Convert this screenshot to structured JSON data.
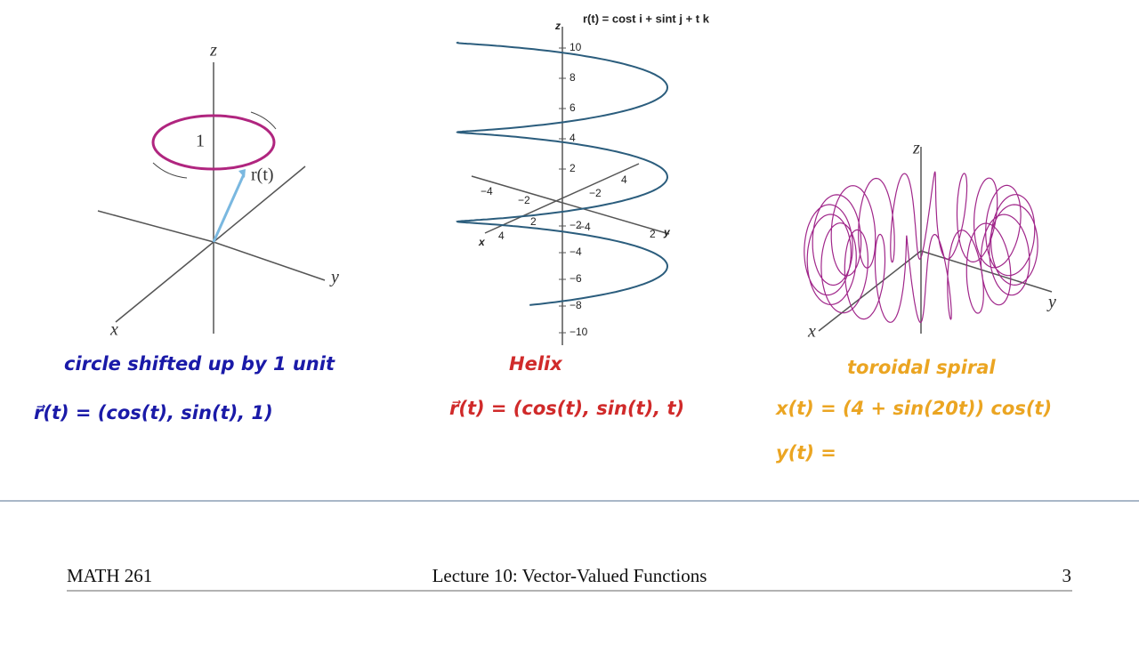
{
  "slide": {
    "figure_circle": {
      "z": "z",
      "one": "1",
      "r": "r(t)",
      "y": "y",
      "x": "x"
    },
    "figure_helix": {
      "title": "r(t) = cost i + sint j + t k",
      "z": "z",
      "x": "x",
      "y": "y",
      "z_ticks": [
        "10",
        "8",
        "6",
        "4",
        "2",
        "−2",
        "−4",
        "−6",
        "−8",
        "−10"
      ],
      "x_ticks": [
        "−4",
        "−2",
        "2",
        "4"
      ],
      "y_ticks": [
        "−4",
        "−2",
        "2",
        "4"
      ]
    },
    "figure_torus": {
      "z": "z",
      "y": "y",
      "x": "x"
    },
    "notes": {
      "circle_caption": "circle shifted up by 1 unit",
      "circle_formula": "r⃗(t) = (cos(t), sin(t), 1)",
      "helix_caption": "Helix",
      "helix_formula": "r⃗(t) = (cos(t), sin(t), t)",
      "torus_caption": "toroidal spiral",
      "torus_x": "x(t) = (4 + sin(20t)) cos(t)",
      "torus_y": "y(t) ="
    },
    "footer": {
      "course": "MATH 261",
      "lecture": "Lecture 10: Vector-Valued Functions",
      "page": "3"
    }
  }
}
